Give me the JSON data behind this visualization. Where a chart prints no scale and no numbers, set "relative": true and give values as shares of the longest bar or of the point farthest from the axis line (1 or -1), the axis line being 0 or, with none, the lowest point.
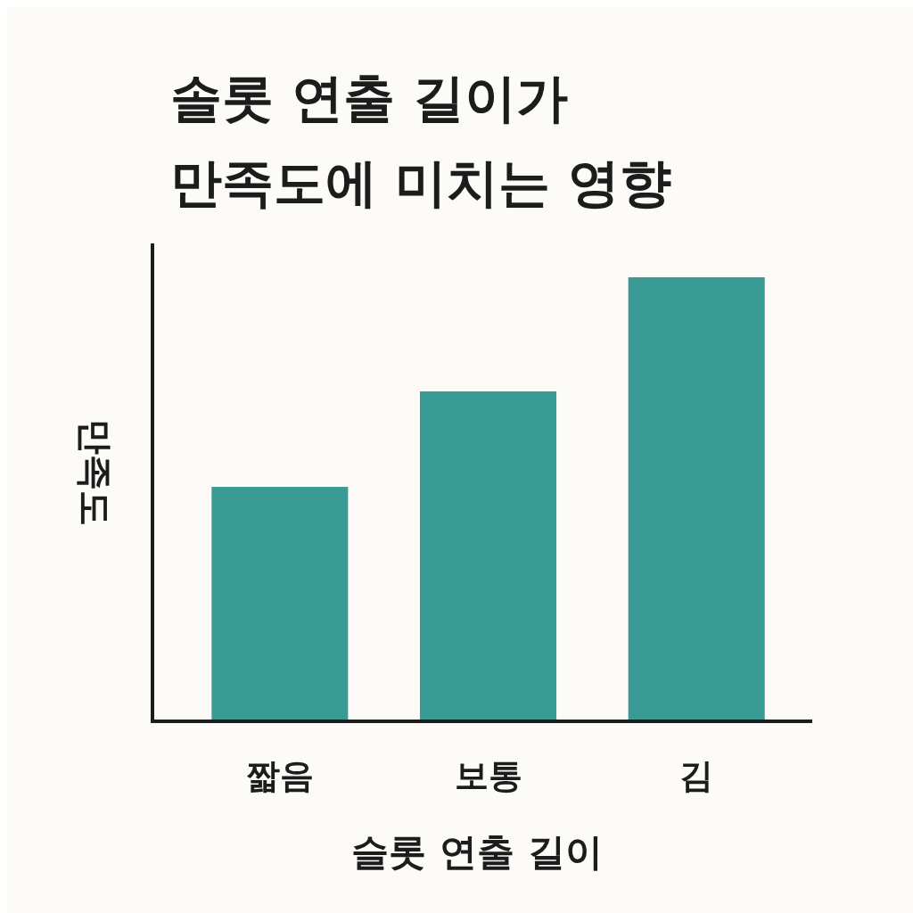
{
  "chart_data": {
    "type": "bar",
    "title": "솔롯 연출 길이가\n만족도에 미치는 영향",
    "xlabel": "슬롯 연출 길이",
    "ylabel": "만족도",
    "categories": [
      "짧음",
      "보통",
      "김"
    ],
    "values": [
      0.528,
      0.743,
      1
    ],
    "color": "#3a9a96",
    "relative": true
  }
}
